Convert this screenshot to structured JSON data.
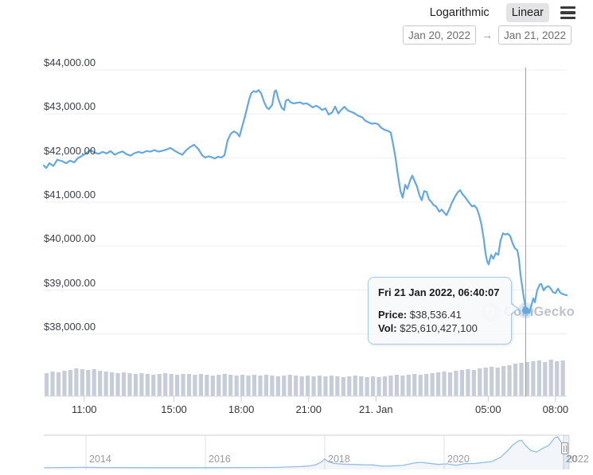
{
  "controls": {
    "scale_options": [
      {
        "label": "Logarithmic",
        "selected": false
      },
      {
        "label": "Linear",
        "selected": true
      }
    ],
    "range_arrow": "→",
    "date_from": "Jan 20, 2022",
    "date_to": "Jan 21, 2022"
  },
  "tooltip": {
    "header": "Fri 21 Jan 2022, 06:40:07",
    "price_label": "Price:",
    "price_value": "$38,536.41",
    "vol_label": "Vol:",
    "vol_value": "$25,610,427,100"
  },
  "watermark": {
    "text": "CoinGecko"
  },
  "colors": {
    "price_line": "#65a8e0",
    "nav_line": "#92bde4",
    "nav_fill": "rgba(130,170,220,0.10)",
    "grid": "#f0f0f0",
    "volume_bar": "#c7cdd6",
    "volume_baseline": "#d8dfe9",
    "crosshair": "#9b9b9b",
    "halo": "rgba(101,168,224,0.25)",
    "tick": "#cccccc",
    "nav_grid": "#e2e2e4",
    "nav_border": "#cccccc"
  },
  "chart_data": {
    "type": "line",
    "title": "",
    "x_unit": "hours since 2022-01-20 00:00",
    "x_range": [
      9.2,
      32.5
    ],
    "y_axis": {
      "tick_values": [
        44000,
        43000,
        42000,
        41000,
        40000,
        39000,
        38000
      ],
      "tick_labels": [
        "$44,000.00",
        "$43,000.00",
        "$42,000.00",
        "$41,000.00",
        "$40,000.00",
        "$39,000.00",
        "$38,000.00"
      ]
    },
    "x_ticks": [
      {
        "t": 11,
        "label": "11:00"
      },
      {
        "t": 15,
        "label": "15:00"
      },
      {
        "t": 18,
        "label": "18:00"
      },
      {
        "t": 21,
        "label": "21:00"
      },
      {
        "t": 24,
        "label": "21. Jan"
      },
      {
        "t": 29,
        "label": "05:00"
      },
      {
        "t": 32,
        "label": "08:00"
      }
    ],
    "highlight_point": {
      "t": 30.67,
      "price": 38536.41
    },
    "price_series": [
      [
        9.2,
        41830
      ],
      [
        9.31,
        41770
      ],
      [
        9.45,
        41880
      ],
      [
        9.63,
        41820
      ],
      [
        9.8,
        41960
      ],
      [
        10.02,
        41930
      ],
      [
        10.19,
        41880
      ],
      [
        10.37,
        41940
      ],
      [
        10.55,
        41900
      ],
      [
        10.72,
        42000
      ],
      [
        10.94,
        42060
      ],
      [
        11.15,
        42130
      ],
      [
        11.29,
        42180
      ],
      [
        11.47,
        42120
      ],
      [
        11.65,
        42095
      ],
      [
        11.82,
        42140
      ],
      [
        12.0,
        42105
      ],
      [
        12.18,
        42155
      ],
      [
        12.36,
        42075
      ],
      [
        12.53,
        42120
      ],
      [
        12.71,
        42150
      ],
      [
        12.89,
        42085
      ],
      [
        13.07,
        42055
      ],
      [
        13.24,
        42110
      ],
      [
        13.42,
        42140
      ],
      [
        13.6,
        42115
      ],
      [
        13.77,
        42160
      ],
      [
        13.95,
        42145
      ],
      [
        14.13,
        42180
      ],
      [
        14.31,
        42145
      ],
      [
        14.48,
        42165
      ],
      [
        14.66,
        42190
      ],
      [
        14.84,
        42230
      ],
      [
        15.02,
        42170
      ],
      [
        15.19,
        42120
      ],
      [
        15.37,
        42075
      ],
      [
        15.55,
        42180
      ],
      [
        15.72,
        42250
      ],
      [
        15.9,
        42300
      ],
      [
        16.08,
        42210
      ],
      [
        16.26,
        42060
      ],
      [
        16.4,
        42010
      ],
      [
        16.54,
        42040
      ],
      [
        16.68,
        42020
      ],
      [
        16.82,
        41990
      ],
      [
        16.97,
        42030
      ],
      [
        17.11,
        42010
      ],
      [
        17.25,
        42060
      ],
      [
        17.39,
        42400
      ],
      [
        17.53,
        42550
      ],
      [
        17.67,
        42605
      ],
      [
        17.82,
        42560
      ],
      [
        17.92,
        42490
      ],
      [
        18.03,
        42700
      ],
      [
        18.14,
        42900
      ],
      [
        18.24,
        43100
      ],
      [
        18.35,
        43330
      ],
      [
        18.45,
        43475
      ],
      [
        18.56,
        43520
      ],
      [
        18.67,
        43500
      ],
      [
        18.77,
        43545
      ],
      [
        18.88,
        43470
      ],
      [
        19.02,
        43270
      ],
      [
        19.13,
        43150
      ],
      [
        19.23,
        43110
      ],
      [
        19.38,
        43210
      ],
      [
        19.48,
        43510
      ],
      [
        19.55,
        43540
      ],
      [
        19.66,
        43330
      ],
      [
        19.8,
        43140
      ],
      [
        19.91,
        43090
      ],
      [
        19.98,
        43300
      ],
      [
        20.09,
        43330
      ],
      [
        20.19,
        43270
      ],
      [
        20.33,
        43240
      ],
      [
        20.48,
        43255
      ],
      [
        20.62,
        43265
      ],
      [
        20.76,
        43230
      ],
      [
        20.9,
        43245
      ],
      [
        21.04,
        43205
      ],
      [
        21.18,
        43150
      ],
      [
        21.33,
        43190
      ],
      [
        21.47,
        43150
      ],
      [
        21.61,
        43090
      ],
      [
        21.75,
        43130
      ],
      [
        21.89,
        42990
      ],
      [
        22.04,
        43030
      ],
      [
        22.18,
        43170
      ],
      [
        22.32,
        43010
      ],
      [
        22.46,
        43100
      ],
      [
        22.6,
        43165
      ],
      [
        22.75,
        43080
      ],
      [
        22.89,
        43050
      ],
      [
        23.03,
        43020
      ],
      [
        23.21,
        42960
      ],
      [
        23.38,
        42930
      ],
      [
        23.52,
        42850
      ],
      [
        23.67,
        42810
      ],
      [
        23.81,
        42780
      ],
      [
        23.95,
        42790
      ],
      [
        24.09,
        42770
      ],
      [
        24.23,
        42690
      ],
      [
        24.38,
        42640
      ],
      [
        24.52,
        42620
      ],
      [
        24.66,
        42580
      ],
      [
        24.77,
        42300
      ],
      [
        24.87,
        42000
      ],
      [
        24.98,
        41600
      ],
      [
        25.09,
        41250
      ],
      [
        25.19,
        41100
      ],
      [
        25.3,
        41390
      ],
      [
        25.4,
        41300
      ],
      [
        25.51,
        41480
      ],
      [
        25.62,
        41600
      ],
      [
        25.72,
        41480
      ],
      [
        25.83,
        41350
      ],
      [
        25.94,
        41150
      ],
      [
        26.04,
        41040
      ],
      [
        26.15,
        41250
      ],
      [
        26.26,
        41230
      ],
      [
        26.36,
        41060
      ],
      [
        26.47,
        41000
      ],
      [
        26.57,
        40930
      ],
      [
        26.68,
        40900
      ],
      [
        26.82,
        40780
      ],
      [
        26.93,
        40830
      ],
      [
        27.04,
        40760
      ],
      [
        27.14,
        40700
      ],
      [
        27.25,
        40820
      ],
      [
        27.39,
        40990
      ],
      [
        27.53,
        41130
      ],
      [
        27.64,
        41220
      ],
      [
        27.75,
        41270
      ],
      [
        27.85,
        41180
      ],
      [
        27.99,
        41100
      ],
      [
        28.14,
        40990
      ],
      [
        28.28,
        40900
      ],
      [
        28.38,
        40920
      ],
      [
        28.49,
        40860
      ],
      [
        28.6,
        40700
      ],
      [
        28.7,
        40490
      ],
      [
        28.81,
        40130
      ],
      [
        28.88,
        39840
      ],
      [
        28.95,
        39660
      ],
      [
        29.02,
        39580
      ],
      [
        29.13,
        39800
      ],
      [
        29.23,
        39710
      ],
      [
        29.34,
        39840
      ],
      [
        29.45,
        39800
      ],
      [
        29.55,
        40120
      ],
      [
        29.66,
        40290
      ],
      [
        29.77,
        40260
      ],
      [
        29.87,
        40280
      ],
      [
        29.98,
        40230
      ],
      [
        30.09,
        40060
      ],
      [
        30.19,
        39950
      ],
      [
        30.3,
        39900
      ],
      [
        30.37,
        39710
      ],
      [
        30.44,
        39350
      ],
      [
        30.51,
        39100
      ],
      [
        30.58,
        38850
      ],
      [
        30.65,
        38650
      ],
      [
        30.69,
        38536
      ],
      [
        30.76,
        38500
      ],
      [
        30.83,
        38480
      ],
      [
        30.94,
        38680
      ],
      [
        31.01,
        38810
      ],
      [
        31.08,
        38720
      ],
      [
        31.18,
        38990
      ],
      [
        31.29,
        39120
      ],
      [
        31.36,
        39140
      ],
      [
        31.47,
        38990
      ],
      [
        31.57,
        39060
      ],
      [
        31.68,
        39090
      ],
      [
        31.79,
        39030
      ],
      [
        31.89,
        38950
      ],
      [
        32.0,
        38930
      ],
      [
        32.11,
        39030
      ],
      [
        32.21,
        38940
      ],
      [
        32.32,
        38910
      ],
      [
        32.43,
        38890
      ],
      [
        32.5,
        38880
      ]
    ],
    "volume_bars_rel": [
      29,
      31,
      30,
      32,
      33,
      35,
      34,
      33,
      34,
      32,
      31,
      30,
      29,
      30,
      29,
      28,
      29,
      28,
      27,
      28,
      29,
      28,
      27,
      28,
      28,
      27,
      28,
      27,
      26,
      27,
      28,
      27,
      26,
      27,
      26,
      27,
      26,
      27,
      26,
      25,
      26,
      27,
      26,
      25,
      26,
      25,
      26,
      25,
      26,
      25,
      24,
      25,
      26,
      25,
      24,
      25,
      24,
      25,
      26,
      27,
      26,
      27,
      28,
      27,
      28,
      29,
      30,
      31,
      30,
      32,
      33,
      34,
      33,
      35,
      36,
      37,
      36,
      38,
      39,
      41,
      42,
      43,
      44,
      45,
      43,
      46,
      44,
      45
    ],
    "navigator": {
      "type": "area",
      "x_unit": "year",
      "x_ticks": [
        2014,
        2016,
        2018,
        2020,
        2022
      ],
      "tick_labels": [
        "2014",
        "2016",
        "2018",
        "2020",
        "2022"
      ],
      "y_max": 70000,
      "series": [
        [
          2013.3,
          200
        ],
        [
          2013.7,
          800
        ],
        [
          2013.95,
          1100
        ],
        [
          2014.3,
          600
        ],
        [
          2014.7,
          500
        ],
        [
          2015.1,
          300
        ],
        [
          2015.5,
          280
        ],
        [
          2015.9,
          400
        ],
        [
          2016.3,
          450
        ],
        [
          2016.7,
          650
        ],
        [
          2016.95,
          900
        ],
        [
          2017.2,
          1100
        ],
        [
          2017.4,
          1900
        ],
        [
          2017.6,
          2700
        ],
        [
          2017.75,
          4200
        ],
        [
          2017.85,
          6500
        ],
        [
          2017.95,
          13000
        ],
        [
          2018.0,
          19500
        ],
        [
          2018.05,
          14000
        ],
        [
          2018.15,
          9500
        ],
        [
          2018.3,
          8000
        ],
        [
          2018.5,
          7200
        ],
        [
          2018.65,
          6500
        ],
        [
          2018.8,
          6300
        ],
        [
          2018.95,
          3800
        ],
        [
          2019.1,
          3900
        ],
        [
          2019.3,
          5200
        ],
        [
          2019.5,
          10500
        ],
        [
          2019.6,
          11800
        ],
        [
          2019.75,
          9800
        ],
        [
          2019.9,
          7300
        ],
        [
          2020.05,
          8500
        ],
        [
          2020.2,
          5500
        ],
        [
          2020.35,
          9000
        ],
        [
          2020.5,
          9200
        ],
        [
          2020.65,
          11500
        ],
        [
          2020.8,
          13500
        ],
        [
          2020.95,
          23000
        ],
        [
          2021.05,
          35000
        ],
        [
          2021.15,
          49000
        ],
        [
          2021.25,
          58000
        ],
        [
          2021.3,
          59000
        ],
        [
          2021.35,
          50000
        ],
        [
          2021.45,
          37000
        ],
        [
          2021.55,
          34000
        ],
        [
          2021.65,
          42000
        ],
        [
          2021.75,
          48000
        ],
        [
          2021.85,
          64000
        ],
        [
          2021.9,
          67000
        ],
        [
          2021.95,
          57000
        ],
        [
          2022.0,
          47000
        ],
        [
          2022.05,
          43000
        ],
        [
          2022.08,
          42000
        ]
      ]
    }
  }
}
